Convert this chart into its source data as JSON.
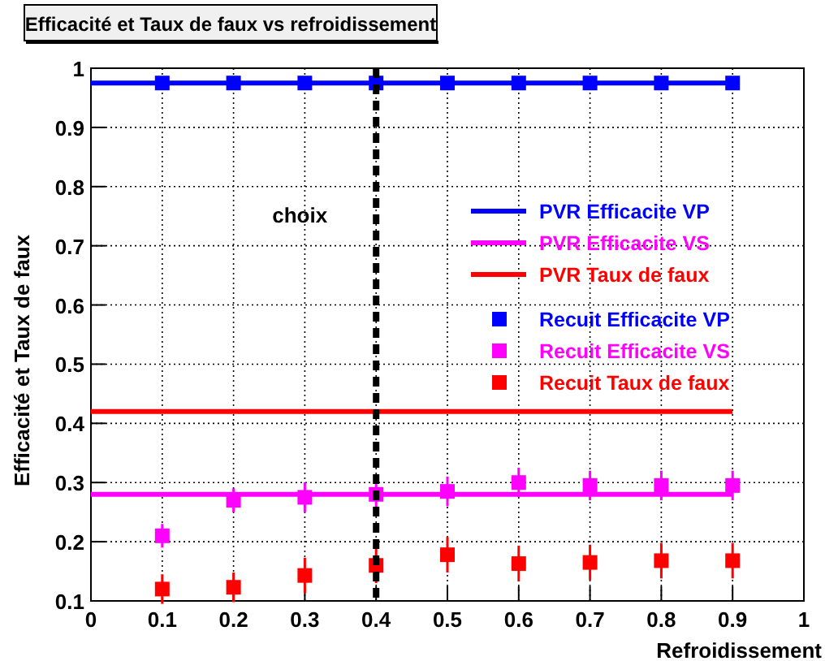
{
  "chart_data": {
    "type": "line",
    "title": "Efficacité et Taux de faux vs refroidissement",
    "xlabel": "Refroidissement",
    "ylabel": "Efficacité et Taux de faux",
    "xlim": [
      0,
      1
    ],
    "xticks": [
      0,
      0.1,
      0.2,
      0.3,
      0.4,
      0.5,
      0.6,
      0.7,
      0.8,
      0.9,
      1
    ],
    "ylim": [
      0.1,
      1
    ],
    "yticks": [
      0.1,
      0.2,
      0.3,
      0.4,
      0.5,
      0.6,
      0.7,
      0.8,
      0.9,
      1
    ],
    "grid": true,
    "legend": "right",
    "ref_lines": [
      {
        "axis": "x",
        "value": 0.4,
        "label": "choix",
        "color": "#000000",
        "line_style": "dashed"
      }
    ],
    "series": [
      {
        "name": "PVR Efficacite VP",
        "type": "line",
        "color": "#0000ff",
        "x": [
          0,
          0.9
        ],
        "values": [
          0.975,
          0.975
        ],
        "marker": "none"
      },
      {
        "name": "PVR Efficacite VS",
        "type": "line",
        "color": "#ff00ff",
        "x": [
          0,
          0.9
        ],
        "values": [
          0.28,
          0.28
        ],
        "marker": "none"
      },
      {
        "name": "PVR Taux de faux",
        "type": "line",
        "color": "#ff0000",
        "x": [
          0,
          0.9
        ],
        "values": [
          0.42,
          0.42
        ],
        "marker": "none"
      },
      {
        "name": "Recuit Efficacite VP",
        "type": "scatter",
        "color": "#0000ff",
        "marker": "square",
        "x": [
          0.1,
          0.2,
          0.3,
          0.4,
          0.5,
          0.6,
          0.7,
          0.8,
          0.9
        ],
        "values": [
          0.975,
          0.975,
          0.975,
          0.975,
          0.975,
          0.975,
          0.975,
          0.975,
          0.975
        ],
        "errors": [
          0.005,
          0.005,
          0.005,
          0.005,
          0.005,
          0.005,
          0.005,
          0.005,
          0.005
        ]
      },
      {
        "name": "Recuit Efficacite VS",
        "type": "scatter",
        "color": "#ff00ff",
        "marker": "square",
        "x": [
          0.1,
          0.2,
          0.3,
          0.4,
          0.5,
          0.6,
          0.7,
          0.8,
          0.9
        ],
        "values": [
          0.21,
          0.27,
          0.275,
          0.28,
          0.285,
          0.3,
          0.295,
          0.295,
          0.295
        ],
        "errors": [
          0.02,
          0.02,
          0.025,
          0.025,
          0.025,
          0.025,
          0.025,
          0.025,
          0.025
        ]
      },
      {
        "name": "Recuit Taux de faux",
        "type": "scatter",
        "color": "#ff0000",
        "marker": "square",
        "x": [
          0.1,
          0.2,
          0.3,
          0.4,
          0.5,
          0.6,
          0.7,
          0.8,
          0.9
        ],
        "values": [
          0.12,
          0.123,
          0.143,
          0.16,
          0.178,
          0.163,
          0.165,
          0.168,
          0.168
        ],
        "errors": [
          0.025,
          0.025,
          0.03,
          0.03,
          0.03,
          0.03,
          0.03,
          0.03,
          0.03
        ]
      }
    ]
  }
}
